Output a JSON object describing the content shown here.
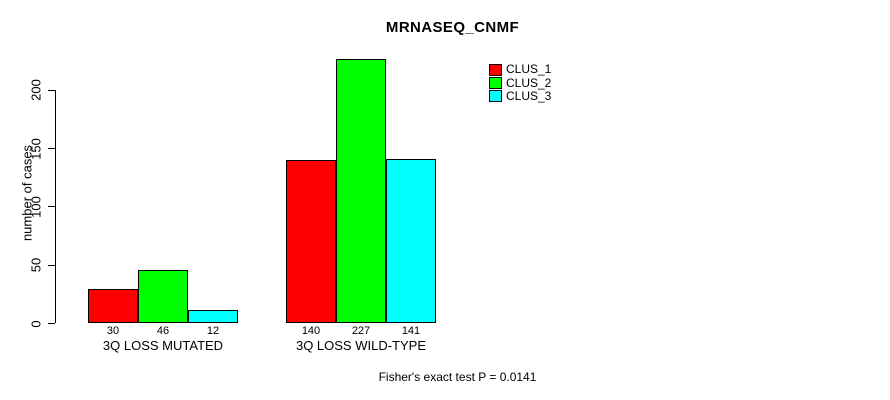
{
  "chart_data": {
    "type": "bar",
    "title": "MRNASEQ_CNMF",
    "ylabel": "number of cases",
    "xlabel": "",
    "categories": [
      "3Q LOSS MUTATED",
      "3Q LOSS WILD-TYPE"
    ],
    "series": [
      {
        "name": "CLUS_1",
        "color": "#FF0000",
        "values": [
          30,
          140
        ]
      },
      {
        "name": "CLUS_2",
        "color": "#00FF00",
        "values": [
          46,
          227
        ]
      },
      {
        "name": "CLUS_3",
        "color": "#00FFFF",
        "values": [
          12,
          141
        ]
      }
    ],
    "yticks": [
      0,
      50,
      100,
      150,
      200
    ],
    "ylim": [
      0,
      233
    ],
    "grid": false,
    "show_bar_value_labels": true,
    "legend": {
      "position": "top-right",
      "entries": [
        "CLUS_1",
        "CLUS_2",
        "CLUS_3"
      ]
    },
    "annotation": "Fisher's exact test P = 0.0141",
    "colors": {
      "background": "#FFFFFF",
      "axis": "#000000",
      "text": "#000000"
    }
  }
}
